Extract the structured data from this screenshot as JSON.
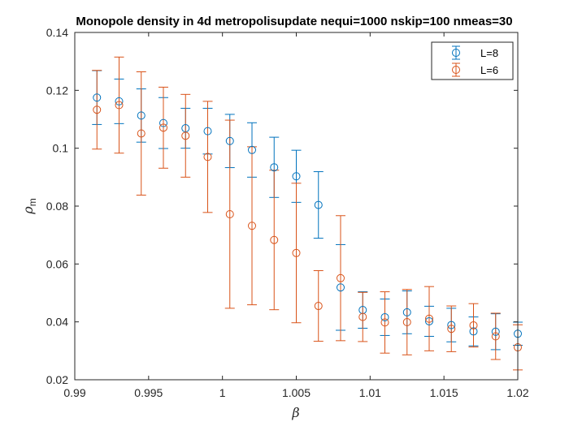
{
  "chart_data": {
    "type": "scatter",
    "title": "Monopole density in 4d metropolisupdate nequi=1000 nskip=100 nmeas=30",
    "xlabel": "β",
    "ylabel": "ρ",
    "ylabel_subscript": "m",
    "xlim": [
      0.99,
      1.02
    ],
    "ylim": [
      0.02,
      0.14
    ],
    "xticks": [
      "0.99",
      "0.995",
      "1",
      "1.005",
      "1.01",
      "1.015",
      "1.02"
    ],
    "yticks": [
      "0.02",
      "0.04",
      "0.06",
      "0.08",
      "0.1",
      "0.12",
      "0.14"
    ],
    "legend_position": "top-right",
    "grid": false,
    "series": [
      {
        "name": "L=8",
        "color": "#0072BD",
        "x": [
          0.9915,
          0.993,
          0.9945,
          0.996,
          0.9975,
          0.999,
          1.0005,
          1.002,
          1.0035,
          1.005,
          1.0065,
          1.008,
          1.0095,
          1.011,
          1.0125,
          1.014,
          1.0155,
          1.017,
          1.0185,
          1.02
        ],
        "y": [
          0.1175,
          0.1162,
          0.1113,
          0.1087,
          0.1069,
          0.1059,
          0.1025,
          0.0994,
          0.0934,
          0.0903,
          0.0804,
          0.0519,
          0.0441,
          0.0416,
          0.0433,
          0.0402,
          0.0389,
          0.0367,
          0.0366,
          0.0359
        ],
        "err": [
          0.0093,
          0.0077,
          0.0092,
          0.0088,
          0.0069,
          0.0079,
          0.0092,
          0.0094,
          0.0104,
          0.009,
          0.0115,
          0.0148,
          0.0063,
          0.0063,
          0.0074,
          0.0052,
          0.0058,
          0.005,
          0.0062,
          0.004
        ]
      },
      {
        "name": "L=6",
        "color": "#D95319",
        "x": [
          0.9915,
          0.993,
          0.9945,
          0.996,
          0.9975,
          0.999,
          1.0005,
          1.002,
          1.0035,
          1.005,
          1.0065,
          1.008,
          1.0095,
          1.011,
          1.0125,
          1.014,
          1.0155,
          1.017,
          1.0185,
          1.02
        ],
        "y": [
          0.1133,
          0.1149,
          0.1051,
          0.1071,
          0.1043,
          0.097,
          0.0772,
          0.0732,
          0.0683,
          0.0638,
          0.0455,
          0.0551,
          0.0417,
          0.0398,
          0.0399,
          0.0411,
          0.0376,
          0.0388,
          0.035,
          0.0312
        ],
        "err": [
          0.0136,
          0.0166,
          0.0213,
          0.014,
          0.0143,
          0.0192,
          0.0325,
          0.0273,
          0.0241,
          0.0241,
          0.0122,
          0.0216,
          0.0085,
          0.0106,
          0.0113,
          0.0111,
          0.0079,
          0.0075,
          0.008,
          0.0078
        ]
      }
    ]
  }
}
